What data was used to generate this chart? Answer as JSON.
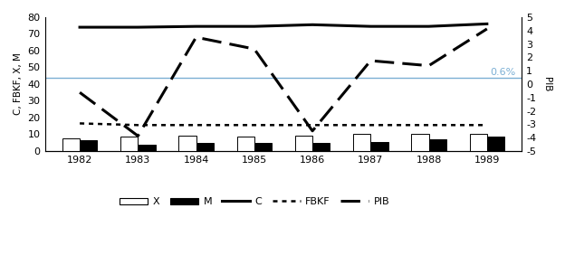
{
  "years": [
    1982,
    1983,
    1984,
    1985,
    1986,
    1987,
    1988,
    1989
  ],
  "X": [
    7.5,
    8.5,
    9.0,
    8.5,
    9.0,
    10.0,
    10.5,
    10.5
  ],
  "M": [
    6.5,
    4.0,
    5.0,
    5.0,
    5.0,
    5.5,
    7.0,
    8.5
  ],
  "C": [
    74.0,
    74.0,
    74.5,
    74.5,
    75.5,
    74.5,
    74.5,
    76.0
  ],
  "FBKF": [
    16.5,
    15.5,
    15.5,
    15.5,
    15.5,
    15.5,
    15.5,
    15.5
  ],
  "PIB_left": [
    35,
    9,
    68,
    61,
    12,
    54,
    51,
    73
  ],
  "hline_y_left": 43.5,
  "hline_label": "0.6%",
  "hline_color": "#7BAFD4",
  "ylim_left": [
    0,
    80
  ],
  "ylim_right": [
    -5,
    5
  ],
  "yticks_left": [
    0,
    10,
    20,
    30,
    40,
    50,
    60,
    70,
    80
  ],
  "yticks_right": [
    -5,
    -4,
    -3,
    -2,
    -1,
    0,
    1,
    2,
    3,
    4,
    5
  ],
  "ylabel_left": "C, FBKF, X, M",
  "ylabel_right": "PIB",
  "bar_width": 0.3,
  "figsize": [
    6.24,
    2.93
  ],
  "dpi": 100
}
